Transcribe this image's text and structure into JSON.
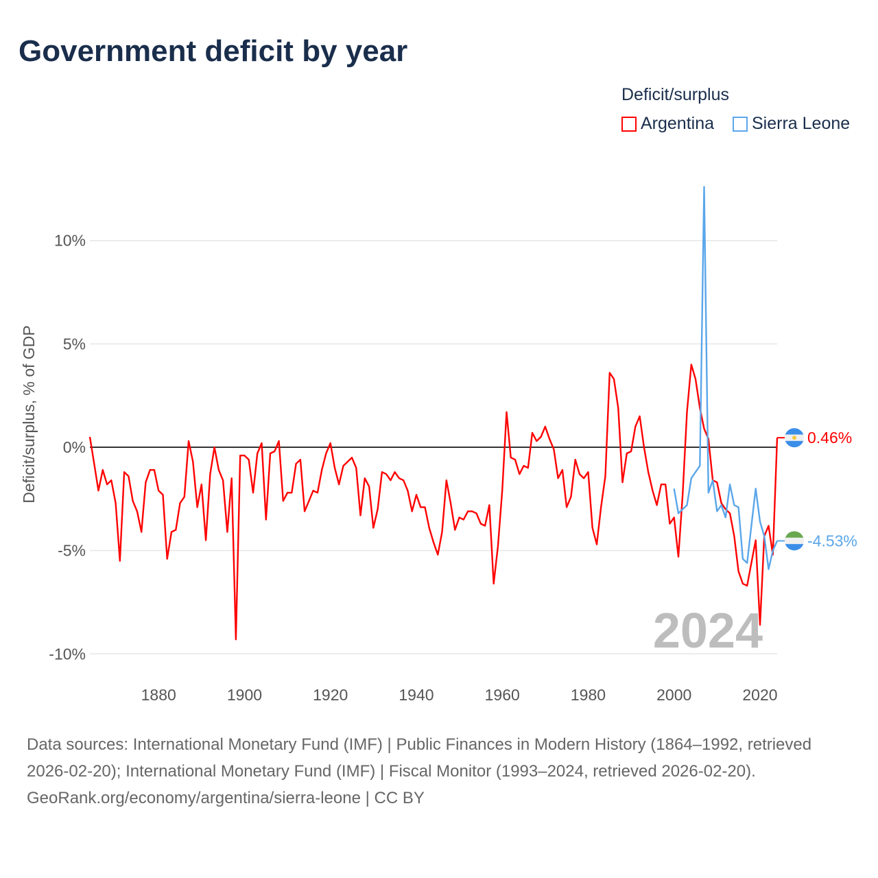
{
  "title": "Government deficit by year",
  "legend": {
    "title": "Deficit/surplus",
    "items": [
      {
        "name": "Argentina",
        "color": "#ff0000"
      },
      {
        "name": "Sierra Leone",
        "color": "#5aa6ea"
      }
    ]
  },
  "year_label": "2024",
  "footer": {
    "sources": "Data sources: International Monetary Fund (IMF) | Public Finances in Modern History (1864–1992, retrieved 2026-02-20); International Monetary Fund (IMF) | Fiscal Monitor (1993–2024, retrieved 2026-02-20).",
    "credit": "GeoRank.org/economy/argentina/sierra-leone | CC BY"
  },
  "chart_data": {
    "type": "line",
    "title": "Government deficit by year",
    "xlabel": "",
    "ylabel": "Deficit/surplus, % of GDP",
    "xlim": [
      1864,
      2024
    ],
    "ylim": [
      -10.5,
      12.7
    ],
    "x_ticks": [
      1880,
      1900,
      1920,
      1940,
      1960,
      1980,
      2000,
      2020
    ],
    "x_tick_labels": [
      "1880",
      "1900",
      "1920",
      "1940",
      "1960",
      "1980",
      "2000",
      "2020"
    ],
    "y_ticks": [
      10,
      5,
      0,
      -5,
      -10
    ],
    "y_tick_labels": [
      "10%",
      "5%",
      "0%",
      "-5%",
      "-10%"
    ],
    "grid": true,
    "legend_position": "top-right",
    "series": [
      {
        "name": "Argentina",
        "color": "#ff0000",
        "end_label": "0.46%",
        "start_year": 1864,
        "values": [
          0.5,
          -0.8,
          -2.1,
          -1.1,
          -1.8,
          -1.6,
          -2.7,
          -5.5,
          -1.2,
          -1.4,
          -2.6,
          -3.1,
          -4.1,
          -1.7,
          -1.1,
          -1.1,
          -2.1,
          -2.3,
          -5.4,
          -4.1,
          -4.0,
          -2.7,
          -2.4,
          0.3,
          -0.7,
          -2.9,
          -1.8,
          -4.5,
          -1.3,
          0.0,
          -1.1,
          -1.6,
          -4.1,
          -1.5,
          -9.3,
          -0.4,
          -0.4,
          -0.6,
          -2.2,
          -0.3,
          0.2,
          -3.5,
          -0.3,
          -0.2,
          0.3,
          -2.6,
          -2.2,
          -2.2,
          -0.8,
          -0.6,
          -3.1,
          -2.6,
          -2.1,
          -2.2,
          -1.1,
          -0.3,
          0.2,
          -1.0,
          -1.8,
          -0.9,
          -0.7,
          -0.5,
          -1.0,
          -3.3,
          -1.5,
          -1.9,
          -3.9,
          -3.0,
          -1.2,
          -1.3,
          -1.6,
          -1.2,
          -1.5,
          -1.6,
          -2.1,
          -3.1,
          -2.3,
          -2.9,
          -2.9,
          -3.9,
          -4.6,
          -5.2,
          -4.1,
          -1.6,
          -2.7,
          -4.0,
          -3.4,
          -3.5,
          -3.1,
          -3.1,
          -3.2,
          -3.7,
          -3.8,
          -2.8,
          -6.6,
          -4.8,
          -2.1,
          1.7,
          -0.5,
          -0.6,
          -1.3,
          -0.9,
          -1.0,
          0.7,
          0.3,
          0.5,
          1.0,
          0.4,
          -0.1,
          -1.5,
          -1.1,
          -2.9,
          -2.4,
          -0.6,
          -1.3,
          -1.5,
          -1.2,
          -3.9,
          -4.7,
          -2.9,
          -1.4,
          3.6,
          3.3,
          1.9,
          -1.7,
          -0.3,
          -0.2,
          1.0,
          1.5,
          0.0,
          -1.2,
          -2.1,
          -2.8,
          -1.8,
          -1.8,
          -3.7,
          -3.4,
          -5.3,
          -2.3,
          1.7,
          4.0,
          3.3,
          1.9,
          0.9,
          0.4,
          -1.6,
          -1.7,
          -2.7,
          -3.0,
          -3.2,
          -4.3,
          -6.0,
          -6.6,
          -6.7,
          -5.6,
          -4.5,
          -8.6,
          -4.3,
          -3.8,
          -5.2,
          0.46
        ]
      },
      {
        "name": "Sierra Leone",
        "color": "#5aa6ea",
        "end_label": "-4.53%",
        "start_year": 2000,
        "values": [
          -2.0,
          -3.2,
          -3.0,
          -2.8,
          -1.5,
          -1.2,
          -0.9,
          12.6,
          -2.2,
          -1.6,
          -3.1,
          -2.8,
          -3.4,
          -1.8,
          -2.8,
          -2.9,
          -5.4,
          -5.6,
          -3.8,
          -2.0,
          -3.6,
          -4.3,
          -5.9,
          -5.0,
          -4.53
        ]
      }
    ]
  }
}
